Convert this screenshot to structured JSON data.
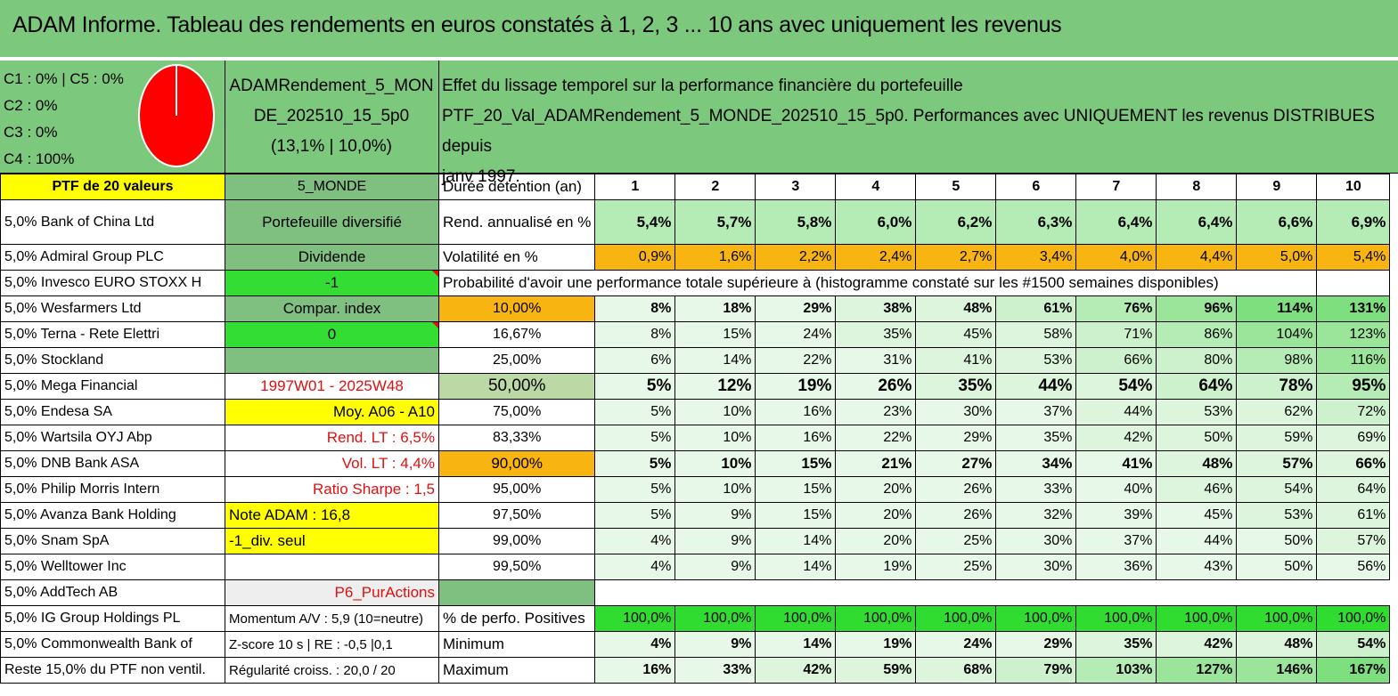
{
  "title": "ADAM Informe. Tableau des rendements en euros constatés à 1, 2, 3 ... 10 ans avec uniquement les revenus",
  "classes": [
    "C1 : 0% | C5 : 0%",
    "C2 : 0%",
    "C3 : 0%",
    "C4 : 100%"
  ],
  "pie": {
    "color": "#ff0000",
    "share_c4": 100
  },
  "portfolio": {
    "name_line1": "ADAMRendement_5_MON",
    "name_line2": "DE_202510_15_5p0",
    "name_line3": "(13,1% | 10,0%)"
  },
  "effect_text": {
    "line1": "Effet du lissage temporel sur la performance financière du portefeuille",
    "line2": "PTF_20_Val_ADAMRendement_5_MONDE_202510_15_5p0. Performances avec UNIQUEMENT les revenus DISTRIBUES depuis",
    "line3": "janv 1997."
  },
  "header": {
    "col1": "PTF de 20 valeurs",
    "col2": "5_MONDE",
    "col3": "Durée détention (an)",
    "years": [
      "1",
      "2",
      "3",
      "4",
      "5",
      "6",
      "7",
      "8",
      "9",
      "10"
    ]
  },
  "holdings": [
    "5,0% Bank of China Ltd",
    "5,0% Admiral Group PLC",
    "5,0% Invesco EURO STOXX H",
    "5,0% Wesfarmers Ltd",
    "5,0% Terna - Rete Elettri",
    "5,0% Stockland",
    "5,0% Mega Financial",
    "5,0% Endesa SA",
    "5,0% Wartsila OYJ Abp",
    "5,0% DNB Bank ASA",
    "5,0% Philip Morris Intern",
    "5,0% Avanza Bank Holding",
    "5,0% Snam SpA",
    "5,0% Welltower Inc",
    "5,0% AddTech AB",
    "5,0% IG Group Holdings PL",
    "5,0% Commonwealth Bank of",
    "Reste 15,0% du PTF non ventil."
  ],
  "col2": [
    "Portefeuille diversifié",
    "Dividende",
    "-1",
    "Compar. index",
    "0",
    "",
    "1997W01 - 2025W48",
    "Moy. A06 - A10",
    "Rend. LT : 6,5%",
    "Vol. LT : 4,4%",
    "Ratio Sharpe : 1,5",
    "Note ADAM : 16,8",
    "-1_div. seul",
    "",
    "P6_PurActions",
    "Momentum A/V : 5,9 (10=neutre)",
    "Z-score 10 s | RE : -0,5 |0,1",
    "Régularité croiss. : 20,0 / 20"
  ],
  "rend": {
    "label": "Rend. annualisé en %",
    "values": [
      "5,4%",
      "5,7%",
      "5,8%",
      "6,0%",
      "6,2%",
      "6,3%",
      "6,4%",
      "6,4%",
      "6,6%",
      "6,9%"
    ]
  },
  "vol": {
    "label": "Volatilité en %",
    "values": [
      "0,9%",
      "1,6%",
      "2,2%",
      "2,4%",
      "2,7%",
      "3,4%",
      "4,0%",
      "4,4%",
      "5,0%",
      "5,4%"
    ]
  },
  "proba_title": "Probabilité d'avoir une performance totale supérieure à (histogramme constaté sur les #1500 semaines disponibles)",
  "proba": [
    {
      "p": "10,00%",
      "values": [
        "8%",
        "18%",
        "29%",
        "38%",
        "48%",
        "61%",
        "76%",
        "96%",
        "114%",
        "131%"
      ]
    },
    {
      "p": "16,67%",
      "values": [
        "8%",
        "15%",
        "24%",
        "35%",
        "45%",
        "58%",
        "71%",
        "86%",
        "104%",
        "123%"
      ]
    },
    {
      "p": "25,00%",
      "values": [
        "6%",
        "14%",
        "22%",
        "31%",
        "41%",
        "53%",
        "66%",
        "80%",
        "98%",
        "116%"
      ]
    },
    {
      "p": "50,00%",
      "values": [
        "5%",
        "12%",
        "19%",
        "26%",
        "35%",
        "44%",
        "54%",
        "64%",
        "78%",
        "95%"
      ]
    },
    {
      "p": "75,00%",
      "values": [
        "5%",
        "10%",
        "16%",
        "23%",
        "30%",
        "37%",
        "44%",
        "53%",
        "62%",
        "72%"
      ]
    },
    {
      "p": "83,33%",
      "values": [
        "5%",
        "10%",
        "16%",
        "22%",
        "29%",
        "35%",
        "42%",
        "50%",
        "59%",
        "69%"
      ]
    },
    {
      "p": "90,00%",
      "values": [
        "5%",
        "10%",
        "15%",
        "21%",
        "27%",
        "34%",
        "41%",
        "48%",
        "57%",
        "66%"
      ]
    },
    {
      "p": "95,00%",
      "values": [
        "5%",
        "10%",
        "15%",
        "20%",
        "26%",
        "33%",
        "40%",
        "46%",
        "54%",
        "64%"
      ]
    },
    {
      "p": "97,50%",
      "values": [
        "5%",
        "9%",
        "15%",
        "20%",
        "26%",
        "32%",
        "39%",
        "45%",
        "53%",
        "61%"
      ]
    },
    {
      "p": "99,00%",
      "values": [
        "4%",
        "9%",
        "14%",
        "20%",
        "25%",
        "30%",
        "37%",
        "44%",
        "50%",
        "57%"
      ]
    },
    {
      "p": "99,50%",
      "values": [
        "4%",
        "9%",
        "14%",
        "19%",
        "25%",
        "30%",
        "36%",
        "43%",
        "50%",
        "56%"
      ]
    }
  ],
  "positives": {
    "label": "% de perfo. Positives",
    "values": [
      "100,0%",
      "100,0%",
      "100,0%",
      "100,0%",
      "100,0%",
      "100,0%",
      "100,0%",
      "100,0%",
      "100,0%",
      "100,0%"
    ]
  },
  "minimum": {
    "label": "Minimum",
    "values": [
      "4%",
      "9%",
      "14%",
      "19%",
      "24%",
      "29%",
      "35%",
      "42%",
      "48%",
      "54%"
    ]
  },
  "maximum": {
    "label": "Maximum",
    "values": [
      "16%",
      "33%",
      "42%",
      "59%",
      "68%",
      "79%",
      "103%",
      "127%",
      "146%",
      "167%"
    ]
  },
  "colors": {
    "title_bg": "#7cc87c",
    "yellow": "#ffff00",
    "orange": "#f8b410",
    "bright_green": "#33dd33",
    "red_text": "#e01010"
  }
}
